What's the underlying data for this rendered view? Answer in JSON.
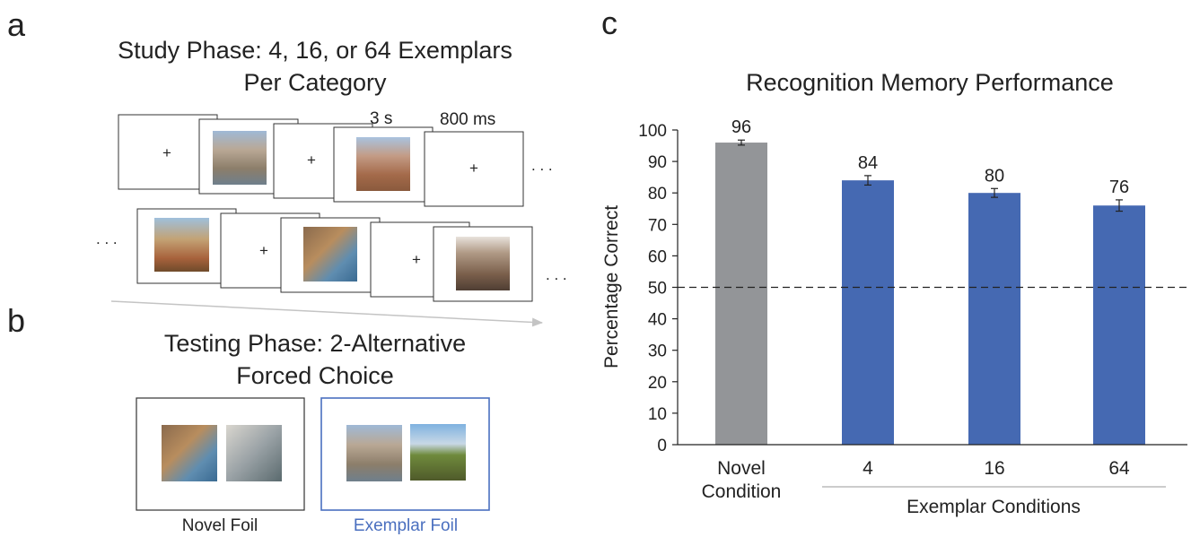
{
  "panel_labels": {
    "a": "a",
    "b": "b",
    "c": "c"
  },
  "study": {
    "title_line1": "Study Phase: 4, 16, or 64 Exemplars",
    "title_line2": "Per Category",
    "image_duration": "3 s",
    "fixation_duration": "800 ms",
    "fixation_symbol": "+",
    "ellipsis": ". . ."
  },
  "testing": {
    "title_line1": "Testing Phase: 2-Alternative",
    "title_line2": "Forced Choice",
    "novel_foil_label": "Novel Foil",
    "exemplar_foil_label": "Exemplar Foil"
  },
  "colors": {
    "gray_bar": "#939598",
    "blue_bar": "#4569b2",
    "exemplar_foil": "#4a6fbf"
  },
  "chart_data": {
    "type": "bar",
    "title": "Recognition Memory Performance",
    "ylabel": "Percentage Correct",
    "ylim": [
      0,
      100
    ],
    "yticks": [
      0,
      10,
      20,
      30,
      40,
      50,
      60,
      70,
      80,
      90,
      100
    ],
    "categories": [
      "Novel Condition",
      "4",
      "16",
      "64"
    ],
    "category_lines": [
      [
        "Novel",
        "Condition"
      ],
      [
        "4"
      ],
      [
        "16"
      ],
      [
        "64"
      ]
    ],
    "values": [
      96,
      84,
      80,
      76
    ],
    "value_labels": [
      "96",
      "84",
      "80",
      "76"
    ],
    "error": [
      0.8,
      1.5,
      1.4,
      1.8
    ],
    "bar_colors": [
      "#939598",
      "#4569b2",
      "#4569b2",
      "#4569b2"
    ],
    "chance_line": 50,
    "group_label": "Exemplar Conditions"
  }
}
